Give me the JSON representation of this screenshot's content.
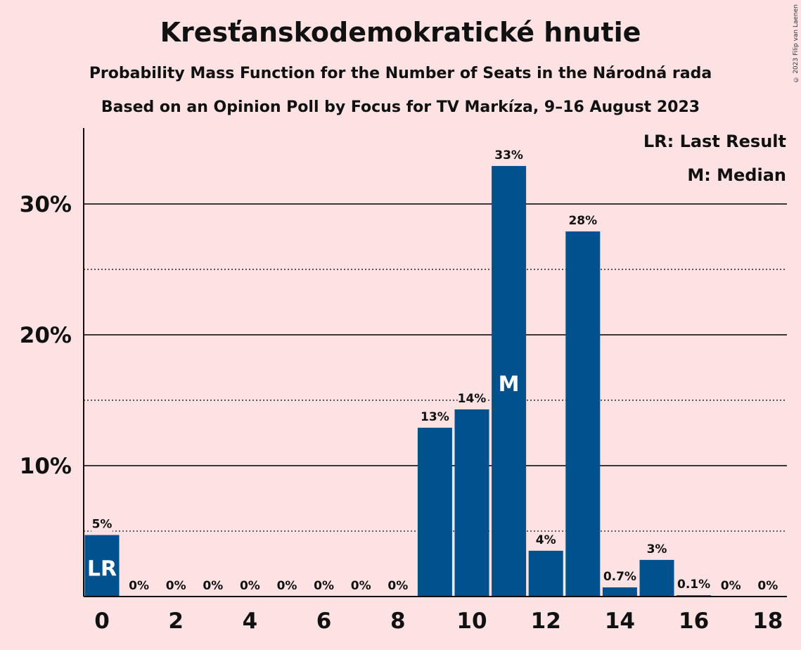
{
  "colors": {
    "background": "#FDE2E4",
    "bar": "#00518E",
    "text": "#111111"
  },
  "chart_data": {
    "type": "bar",
    "title": "Kresťanskodemokratické hnutie",
    "subtitle": "Probability Mass Function for the Number of Seats in the Národná rada",
    "subtitle2": "Based on an Opinion Poll by Focus for TV Markíza, 9–16 August 2023",
    "copyright": "© 2023 Filip van Laenen",
    "x": [
      0,
      1,
      2,
      3,
      4,
      5,
      6,
      7,
      8,
      9,
      10,
      11,
      12,
      13,
      14,
      15,
      16,
      17,
      18
    ],
    "values": [
      4.7,
      0,
      0,
      0,
      0,
      0,
      0,
      0,
      0,
      12.9,
      14.3,
      32.9,
      3.5,
      27.9,
      0.7,
      2.8,
      0.1,
      0,
      0
    ],
    "labels": [
      "5%",
      "0%",
      "0%",
      "0%",
      "0%",
      "0%",
      "0%",
      "0%",
      "0%",
      "13%",
      "14%",
      "33%",
      "4%",
      "28%",
      "0.7%",
      "3%",
      "0.1%",
      "0%",
      "0%"
    ],
    "xticks": [
      0,
      2,
      4,
      6,
      8,
      10,
      12,
      14,
      16,
      18
    ],
    "xtick_labels": [
      "0",
      "2",
      "4",
      "6",
      "8",
      "10",
      "12",
      "14",
      "16",
      "18"
    ],
    "yticks": [
      10,
      20,
      30
    ],
    "ytick_labels": [
      "10%",
      "20%",
      "30%"
    ],
    "minor_gridlines": [
      5,
      15,
      25
    ],
    "ylim": [
      0,
      35.8
    ],
    "grid": true,
    "last_result": {
      "x": 0,
      "label": "LR"
    },
    "median": {
      "x": 11,
      "label": "M"
    },
    "legend": {
      "position": "top-right",
      "entries": [
        "LR: Last Result",
        "M: Median"
      ]
    }
  }
}
